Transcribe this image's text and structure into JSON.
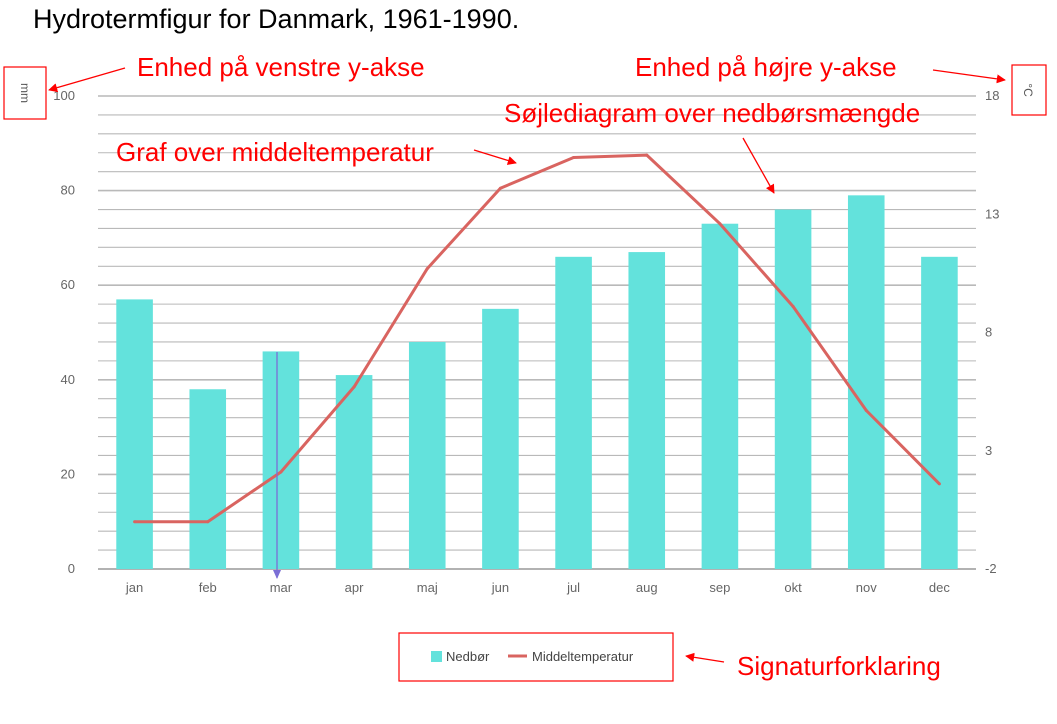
{
  "title": "Hydrotermfigur for Danmark, 1961-1990.",
  "annotations": {
    "left_unit": "Enhed på venstre y-akse",
    "right_unit": "Enhed på højre y-akse",
    "bars": "Søjlediagram over nedbørsmængde",
    "line": "Graf over middeltemperatur",
    "legend": "Signaturforklaring"
  },
  "annotation_color": "#ff0000",
  "chart_data": {
    "type": "bar",
    "categories": [
      "jan",
      "feb",
      "mar",
      "apr",
      "maj",
      "jun",
      "jul",
      "aug",
      "sep",
      "okt",
      "nov",
      "dec"
    ],
    "series": [
      {
        "name": "Nedbør",
        "type": "bar",
        "axis": "left",
        "color": "#63e2dc",
        "values": [
          57,
          38,
          46,
          41,
          48,
          55,
          66,
          67,
          73,
          76,
          79,
          66
        ]
      },
      {
        "name": "Middeltemperatur",
        "type": "line",
        "axis": "right",
        "color": "#d96460",
        "values": [
          0.0,
          0.0,
          2.1,
          5.7,
          10.7,
          14.1,
          15.4,
          15.5,
          12.6,
          9.1,
          4.7,
          1.6
        ]
      }
    ],
    "y_left": {
      "unit": "mm",
      "ylim": [
        0,
        100
      ],
      "ticks": [
        0,
        20,
        40,
        60,
        80,
        100
      ]
    },
    "y_right": {
      "unit": "°C",
      "ylim": [
        -2,
        18
      ],
      "ticks": [
        -2,
        3,
        8,
        13,
        18
      ]
    },
    "grid": true,
    "legend_position": "bottom"
  }
}
